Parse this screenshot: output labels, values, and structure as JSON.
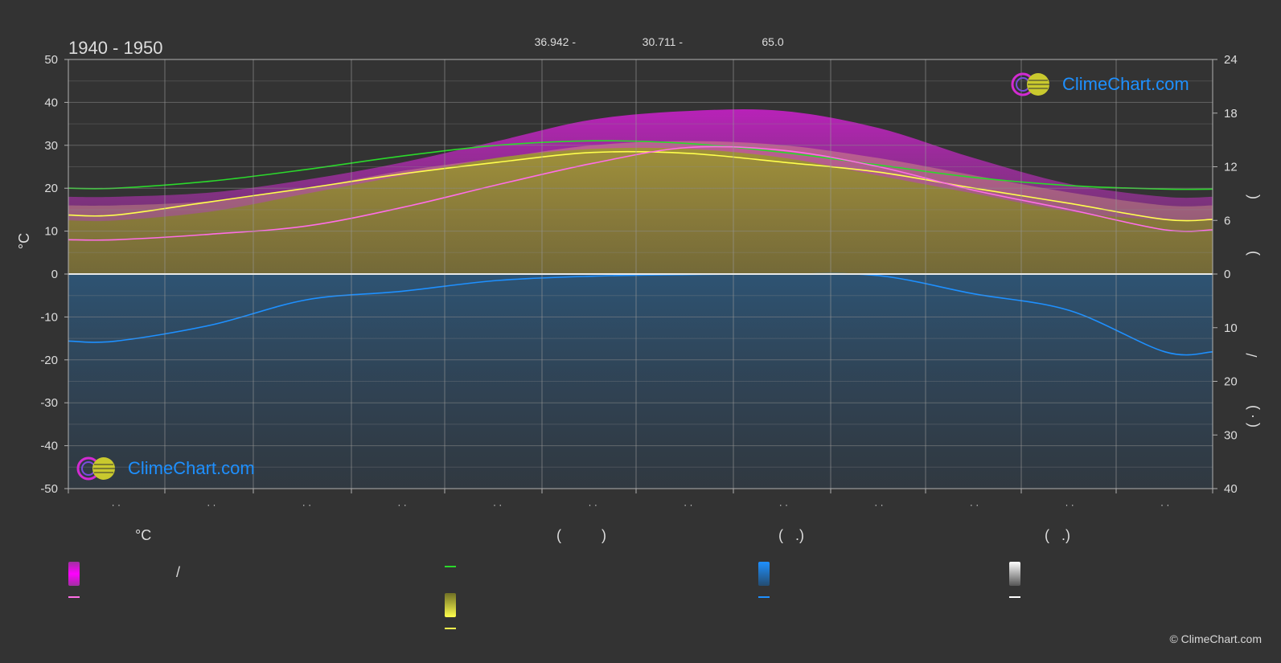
{
  "header": {
    "period": "1940 - 1950",
    "stats": [
      "36.942 -",
      "30.711 -",
      "65.0"
    ]
  },
  "brand": {
    "logo_text": "ClimeChart.com",
    "copyright": "© ClimeChart.com"
  },
  "legend": {
    "headers": [
      "°C",
      "(          )",
      "(   .)",
      "(   .)"
    ],
    "slash": "/"
  },
  "colors": {
    "background": "#333333",
    "daylight": "#2bd92b",
    "sunshine": "#ffff4d",
    "avg_temp": "#ff6ee6",
    "max_temp": "#ff00ff",
    "precip": "#1e90ff",
    "snow": "#ffffff"
  },
  "chart_data": {
    "type": "line",
    "title": "1940 - 1950",
    "ylabel": "°C",
    "ylim": [
      -50,
      50
    ],
    "y_ticks": [
      "50",
      "40",
      "30",
      "20",
      "10",
      "0",
      "-10",
      "-20",
      "-30",
      "-40",
      "-50"
    ],
    "y2_upper_ticks": [
      "24",
      "18",
      "12",
      "6",
      "0"
    ],
    "y2_upper_lim": [
      0,
      24
    ],
    "y2_lower_ticks": [
      "0",
      "10",
      "20",
      "30",
      "40"
    ],
    "y2_lower_lim": [
      0,
      40
    ],
    "y2_label_glyphs": [
      "(",
      ")",
      "/",
      "(  ·  )"
    ],
    "x_tick_labels": [
      "· ·",
      "· ·",
      "· ·",
      "· ·",
      "· ·",
      "· ·",
      "· ·",
      "· ·",
      "· ·",
      "· ·",
      "· ·",
      "· ·"
    ],
    "grid": true,
    "series": [
      {
        "key": "daylight",
        "points": [
          [
            0,
            9.6
          ],
          [
            1,
            10.4
          ],
          [
            2,
            11.7
          ],
          [
            3,
            13.2
          ],
          [
            4,
            14.4
          ],
          [
            5,
            14.9
          ],
          [
            6,
            14.6
          ],
          [
            7,
            13.6
          ],
          [
            8,
            12.2
          ],
          [
            9,
            10.8
          ],
          [
            10,
            9.9
          ],
          [
            11,
            9.5
          ]
        ]
      },
      {
        "key": "sunshine",
        "points": [
          [
            0,
            6.6
          ],
          [
            1,
            8.1
          ],
          [
            2,
            9.6
          ],
          [
            3,
            11.2
          ],
          [
            4,
            12.5
          ],
          [
            5,
            13.6
          ],
          [
            6,
            13.5
          ],
          [
            7,
            12.5
          ],
          [
            8,
            11.4
          ],
          [
            9,
            9.6
          ],
          [
            10,
            7.9
          ],
          [
            11,
            6.1
          ]
        ]
      },
      {
        "key": "avg_temp",
        "points": [
          [
            0,
            8.0
          ],
          [
            1,
            9.3
          ],
          [
            2,
            11.2
          ],
          [
            3,
            15.5
          ],
          [
            4,
            20.8
          ],
          [
            5,
            25.8
          ],
          [
            6,
            29.5
          ],
          [
            7,
            28.8
          ],
          [
            8,
            25.0
          ],
          [
            9,
            19.5
          ],
          [
            10,
            15.0
          ],
          [
            11,
            10.3
          ]
        ]
      },
      {
        "key": "precip",
        "points": [
          [
            0,
            12.5
          ],
          [
            1,
            9.5
          ],
          [
            2,
            4.8
          ],
          [
            3,
            3.2
          ],
          [
            4,
            1.2
          ],
          [
            5,
            0.4
          ],
          [
            6,
            0.1
          ],
          [
            7,
            0.0
          ],
          [
            8,
            0.3
          ],
          [
            9,
            3.7
          ],
          [
            10,
            6.8
          ],
          [
            11,
            14.5
          ]
        ]
      }
    ],
    "bands": {
      "max_temp_top": [
        [
          0,
          18
        ],
        [
          1,
          19
        ],
        [
          2,
          22
        ],
        [
          3,
          26
        ],
        [
          4,
          31
        ],
        [
          5,
          36
        ],
        [
          6,
          38
        ],
        [
          7,
          38
        ],
        [
          8,
          34
        ],
        [
          9,
          27
        ],
        [
          10,
          21
        ],
        [
          11,
          18
        ]
      ],
      "daily_temp_top": [
        [
          0,
          16
        ],
        [
          1,
          17
        ],
        [
          2,
          20
        ],
        [
          3,
          24
        ],
        [
          4,
          27
        ],
        [
          5,
          30
        ],
        [
          6,
          31
        ],
        [
          7,
          30
        ],
        [
          8,
          27
        ],
        [
          9,
          23
        ],
        [
          10,
          19
        ],
        [
          11,
          16
        ]
      ],
      "sunshine_top": [
        [
          0,
          6
        ],
        [
          1,
          7
        ],
        [
          2,
          9
        ],
        [
          3,
          11
        ],
        [
          4,
          13
        ],
        [
          5,
          14
        ],
        [
          6,
          14
        ],
        [
          7,
          13
        ],
        [
          8,
          11
        ],
        [
          9,
          9
        ],
        [
          10,
          7
        ],
        [
          11,
          6
        ]
      ]
    }
  }
}
